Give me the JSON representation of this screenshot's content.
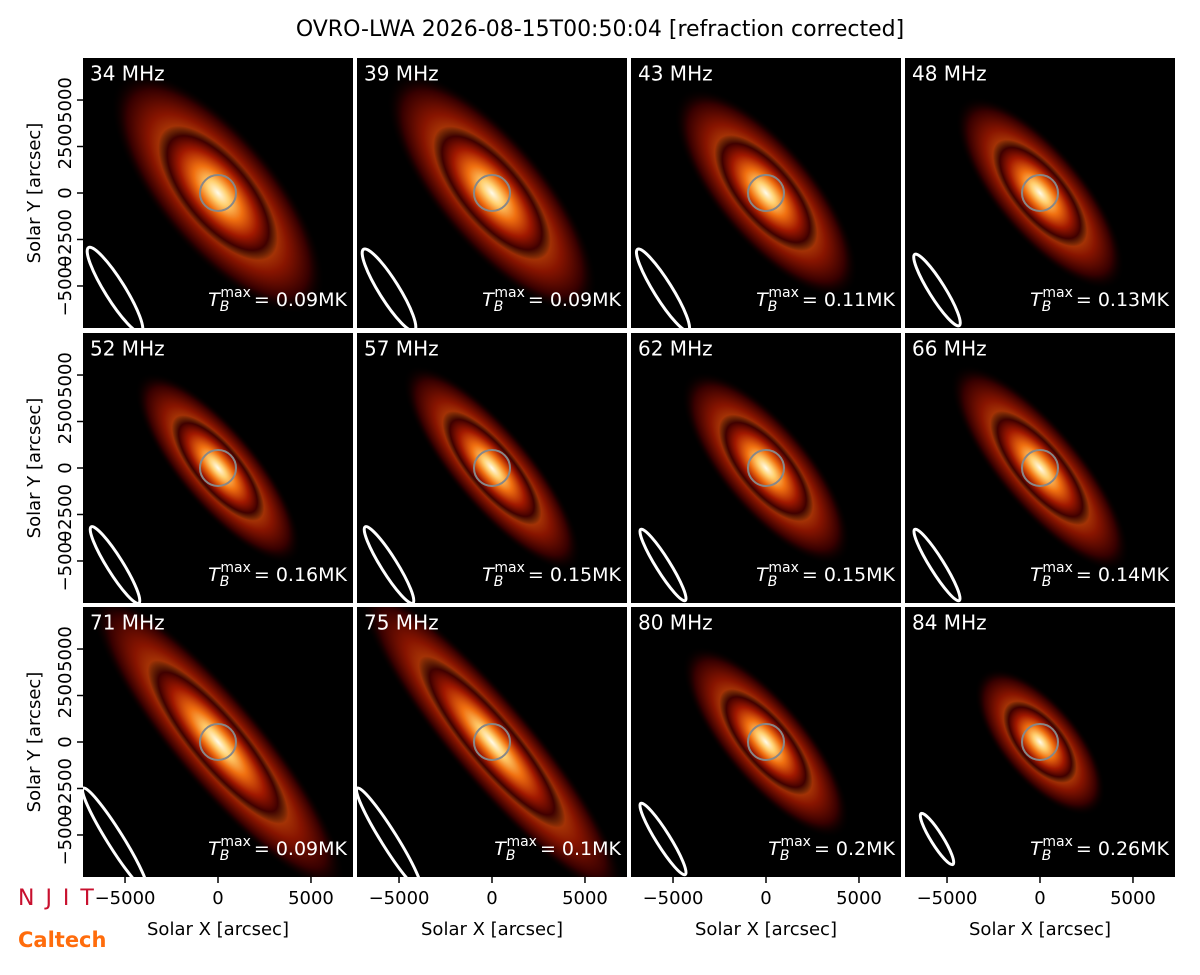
{
  "figure": {
    "title": "OVRO-LWA 2026-08-15T00:50:04 [refraction corrected]",
    "logo_top": "N J I T",
    "logo_bottom": "Caltech"
  },
  "chart_data": [
    {
      "type": "image",
      "title": "34 MHz",
      "annotation": {
        "symbol": "T",
        "subscript": "B",
        "superscript": "max",
        "text": "= 0.09MK"
      },
      "xlim": [
        -7260,
        7260
      ],
      "ylim": [
        -7260,
        7260
      ],
      "ylabel": "Solar Y [arcsec]",
      "yticks": [
        {
          "value": -5000,
          "label": "−5000"
        },
        {
          "value": -2500,
          "label": "−2500"
        },
        0,
        2500,
        5000
      ]
    },
    {
      "type": "image",
      "title": "39 MHz",
      "annotation": {
        "symbol": "T",
        "subscript": "B",
        "superscript": "max",
        "text": "= 0.09MK"
      },
      "xlim": [
        -7260,
        7260
      ],
      "ylim": [
        -7260,
        7260
      ]
    },
    {
      "type": "image",
      "title": "43 MHz",
      "annotation": {
        "symbol": "T",
        "subscript": "B",
        "superscript": "max",
        "text": "= 0.11MK"
      },
      "xlim": [
        -7260,
        7260
      ],
      "ylim": [
        -7260,
        7260
      ]
    },
    {
      "type": "image",
      "title": "48 MHz",
      "annotation": {
        "symbol": "T",
        "subscript": "B",
        "superscript": "max",
        "text": "= 0.13MK"
      },
      "xlim": [
        -7260,
        7260
      ],
      "ylim": [
        -7260,
        7260
      ]
    },
    {
      "type": "image",
      "title": "52 MHz",
      "annotation": {
        "symbol": "T",
        "subscript": "B",
        "superscript": "max",
        "text": "= 0.16MK"
      },
      "xlim": [
        -7260,
        7260
      ],
      "ylim": [
        -7260,
        7260
      ],
      "ylabel": "Solar Y [arcsec]",
      "yticks": [
        {
          "value": -5000,
          "label": "−5000"
        },
        {
          "value": -2500,
          "label": "−2500"
        },
        0,
        2500,
        5000
      ]
    },
    {
      "type": "image",
      "title": "57 MHz",
      "annotation": {
        "symbol": "T",
        "subscript": "B",
        "superscript": "max",
        "text": "= 0.15MK"
      },
      "xlim": [
        -7260,
        7260
      ],
      "ylim": [
        -7260,
        7260
      ]
    },
    {
      "type": "image",
      "title": "62 MHz",
      "annotation": {
        "symbol": "T",
        "subscript": "B",
        "superscript": "max",
        "text": "= 0.15MK"
      },
      "xlim": [
        -7260,
        7260
      ],
      "ylim": [
        -7260,
        7260
      ]
    },
    {
      "type": "image",
      "title": "66 MHz",
      "annotation": {
        "symbol": "T",
        "subscript": "B",
        "superscript": "max",
        "text": "= 0.14MK"
      },
      "xlim": [
        -7260,
        7260
      ],
      "ylim": [
        -7260,
        7260
      ]
    },
    {
      "type": "image",
      "title": "71 MHz",
      "annotation": {
        "symbol": "T",
        "subscript": "B",
        "superscript": "max",
        "text": "= 0.09MK"
      },
      "xlim": [
        -7260,
        7260
      ],
      "ylim": [
        -7260,
        7260
      ],
      "ylabel": "Solar Y [arcsec]",
      "yticks": [
        {
          "value": -5000,
          "label": "−5000"
        },
        {
          "value": -2500,
          "label": "−2500"
        },
        0,
        2500,
        5000
      ],
      "xlabel": "Solar X [arcsec]",
      "xticks": [
        {
          "value": -5000,
          "label": "−5000"
        },
        0,
        5000
      ]
    },
    {
      "type": "image",
      "title": "75 MHz",
      "annotation": {
        "symbol": "T",
        "subscript": "B",
        "superscript": "max",
        "text": "= 0.1MK"
      },
      "xlim": [
        -7260,
        7260
      ],
      "ylim": [
        -7260,
        7260
      ],
      "xlabel": "Solar X [arcsec]",
      "xticks": [
        {
          "value": -5000,
          "label": "−5000"
        },
        0,
        5000
      ]
    },
    {
      "type": "image",
      "title": "80 MHz",
      "annotation": {
        "symbol": "T",
        "subscript": "B",
        "superscript": "max",
        "text": "= 0.2MK"
      },
      "xlim": [
        -7260,
        7260
      ],
      "ylim": [
        -7260,
        7260
      ],
      "xlabel": "Solar X [arcsec]",
      "xticks": [
        {
          "value": -5000,
          "label": "−5000"
        },
        0,
        5000
      ]
    },
    {
      "type": "image",
      "title": "84 MHz",
      "annotation": {
        "symbol": "T",
        "subscript": "B",
        "superscript": "max",
        "text": "= 0.26MK"
      },
      "xlim": [
        -7260,
        7260
      ],
      "ylim": [
        -7260,
        7260
      ],
      "xlabel": "Solar X [arcsec]",
      "xticks": [
        {
          "value": -5000,
          "label": "−5000"
        },
        0,
        5000
      ]
    }
  ]
}
